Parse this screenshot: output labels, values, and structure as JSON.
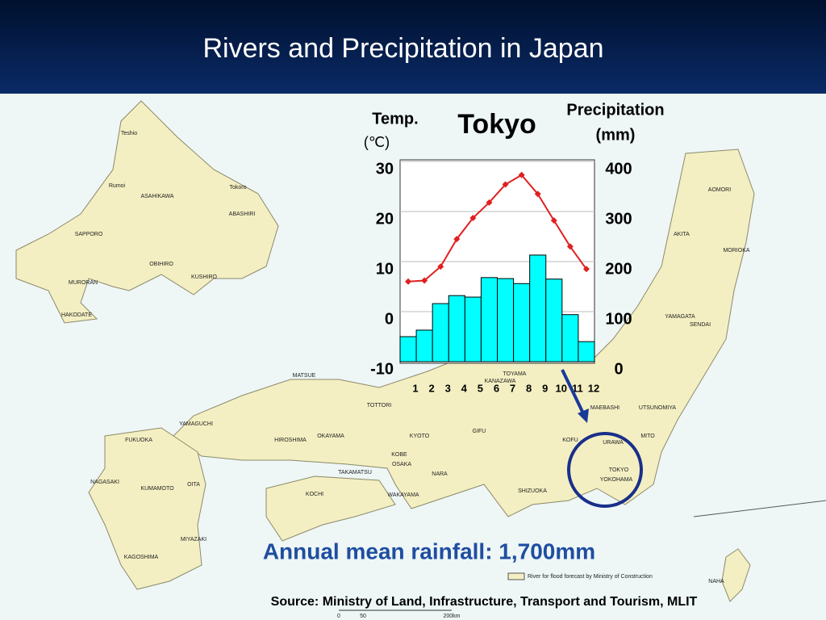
{
  "slide": {
    "title": "Rivers and Precipitation in Japan",
    "annotation": "Annual mean rainfall: 1,700mm",
    "source": "Source: Ministry of Land, Infrastructure, Transport and Tourism, MLIT",
    "map_labels": [
      "Teshio",
      "Rumoi",
      "ASAHIKAWA",
      "SAPPORO",
      "OBIHIRO",
      "KUSHIRO",
      "MURORAN",
      "HAKODATE",
      "Tokoro",
      "ABASHIRI",
      "AOMORI",
      "MORIOKA",
      "AKITA",
      "SENDAI",
      "YAMAGATA",
      "TOYAMA",
      "KANAZAWA",
      "MATSUE",
      "TOTTORI",
      "YAMAGUCHI",
      "HIROSHIMA",
      "OKAYAMA",
      "KYOTO",
      "GIFU",
      "KOBE",
      "OSAKA",
      "NARA",
      "TAKAMATSU",
      "FUKUOKA",
      "NAGASAKI",
      "KUMAMOTO",
      "OITA",
      "KOCHI",
      "WAKAYAMA",
      "SHIZUOKA",
      "KOFU",
      "URAWA",
      "TOKYO",
      "YOKOHAMA",
      "MITO",
      "UTSUNOMIYA",
      "MAEBASHI",
      "MIYAZAKI",
      "KAGOSHIMA",
      "NAHA"
    ],
    "legend": "River for flood forecast by Ministry of Construction",
    "scale": [
      "0",
      "50",
      "200km"
    ]
  },
  "chart_data": {
    "type": "combo",
    "title": "Tokyo",
    "ylabel": "Temp.",
    "yunit": "(℃)",
    "y2label": "Precipitation",
    "y2unit": "(mm)",
    "categories": [
      "1",
      "2",
      "3",
      "4",
      "5",
      "6",
      "7",
      "8",
      "9",
      "10",
      "11",
      "12"
    ],
    "ylim": [
      -10,
      30
    ],
    "yticks": [
      -10,
      0,
      10,
      20,
      30
    ],
    "y2lim": [
      0,
      400
    ],
    "y2ticks": [
      0,
      100,
      200,
      300,
      400
    ],
    "grid": true,
    "series": [
      {
        "type": "bar",
        "axis": "y2",
        "color": "#00ffff",
        "values": [
          50,
          63,
          116,
          132,
          129,
          168,
          166,
          156,
          213,
          165,
          94,
          40
        ]
      },
      {
        "type": "line",
        "color": "#e02020",
        "values": [
          6,
          6.2,
          9,
          14.5,
          18.7,
          21.8,
          25.4,
          27.3,
          23.5,
          18.2,
          13,
          8.5
        ]
      }
    ]
  }
}
